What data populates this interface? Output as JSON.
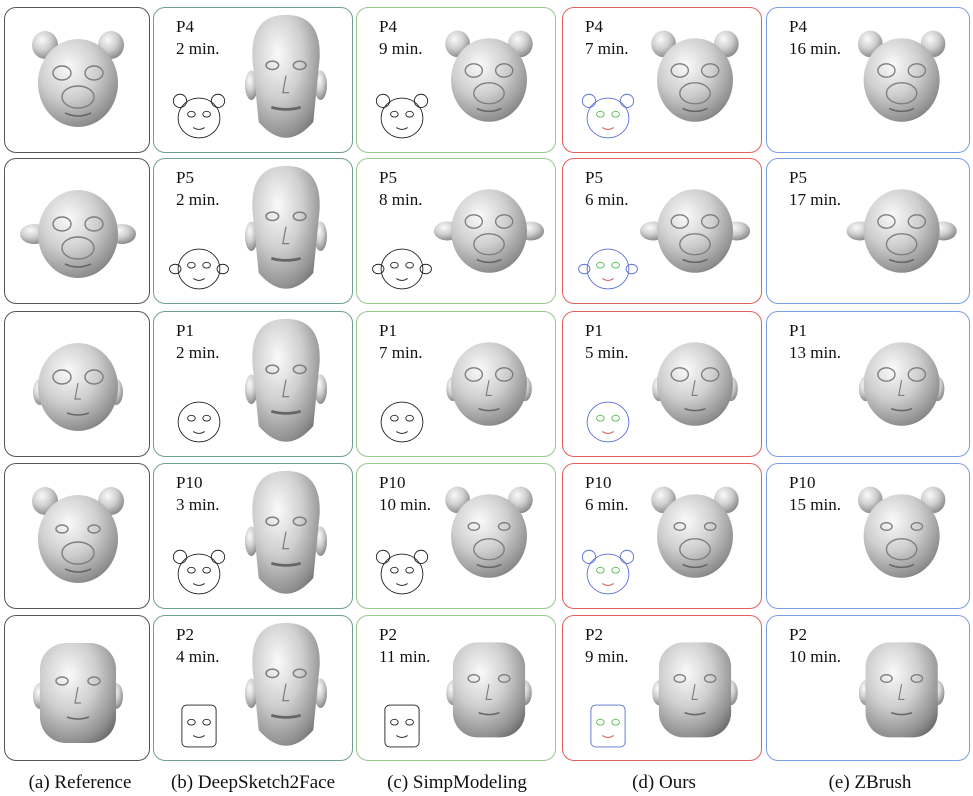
{
  "colors": {
    "reference": "#555555",
    "deepsketch2face": "#6f9f92",
    "simpmodeling": "#97c98d",
    "ours": "#e06060",
    "zbrush": "#7a9ee0"
  },
  "columns": [
    {
      "key": "reference",
      "caption": "(a) Reference"
    },
    {
      "key": "deepsketch2face",
      "caption": "(b) DeepSketch2Face"
    },
    {
      "key": "simpmodeling",
      "caption": "(c) SimpModeling"
    },
    {
      "key": "ours",
      "caption": "(d) Ours"
    },
    {
      "key": "zbrush",
      "caption": "(e) ZBrush"
    }
  ],
  "rows": [
    {
      "participant": "P4",
      "subject": "dog",
      "times": {
        "deepsketch2face": "2 min.",
        "simpmodeling": "9 min.",
        "ours": "7 min.",
        "zbrush": "16 min."
      }
    },
    {
      "participant": "P5",
      "subject": "monkey",
      "times": {
        "deepsketch2face": "2 min.",
        "simpmodeling": "8 min.",
        "ours": "6 min.",
        "zbrush": "17 min."
      }
    },
    {
      "participant": "P1",
      "subject": "child",
      "times": {
        "deepsketch2face": "2 min.",
        "simpmodeling": "7 min.",
        "ours": "5 min.",
        "zbrush": "13 min."
      }
    },
    {
      "participant": "P10",
      "subject": "bear",
      "times": {
        "deepsketch2face": "3 min.",
        "simpmodeling": "10 min.",
        "ours": "6 min.",
        "zbrush": "15 min."
      }
    },
    {
      "participant": "P2",
      "subject": "man",
      "times": {
        "deepsketch2face": "4 min.",
        "simpmodeling": "11 min.",
        "ours": "9 min.",
        "zbrush": "10 min."
      }
    }
  ]
}
